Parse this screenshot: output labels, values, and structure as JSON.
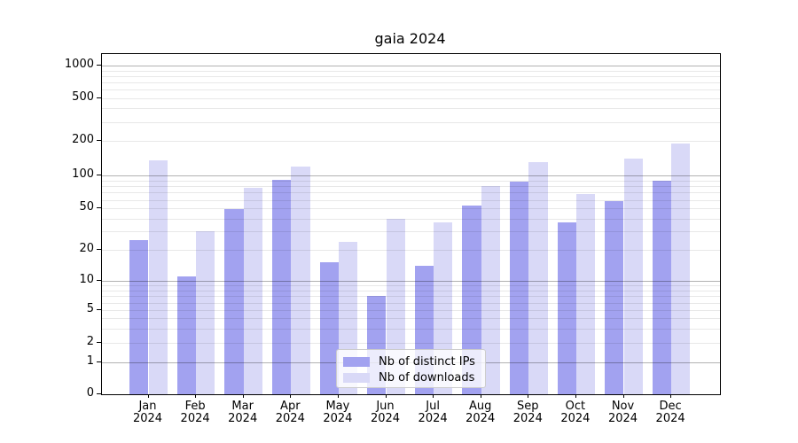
{
  "title": "gaia 2024",
  "chart_data": {
    "type": "bar",
    "title": "gaia 2024",
    "categories": [
      "Jan 2024",
      "Feb 2024",
      "Mar 2024",
      "Apr 2024",
      "May 2024",
      "Jun 2024",
      "Jul 2024",
      "Aug 2024",
      "Sep 2024",
      "Oct 2024",
      "Nov 2024",
      "Dec 2024"
    ],
    "series": [
      {
        "name": "Nb of distinct IPs",
        "color": "#a2a2f0",
        "values": [
          25,
          11,
          49,
          92,
          15,
          7,
          14,
          53,
          89,
          37,
          59,
          90
        ]
      },
      {
        "name": "Nb of downloads",
        "color": "#d9d9f7",
        "values": [
          135,
          30,
          78,
          120,
          24,
          40,
          37,
          81,
          132,
          68,
          140,
          190
        ]
      }
    ],
    "xlabel": "",
    "ylabel": "",
    "y_ticks": [
      0,
      1,
      2,
      5,
      10,
      20,
      50,
      100,
      200,
      500,
      1000
    ],
    "ylim": [
      0,
      1250
    ],
    "y_scale": "log-like (symlog: linear 0-1, compressed log above)",
    "grid": true,
    "legend_position": "lower center"
  }
}
